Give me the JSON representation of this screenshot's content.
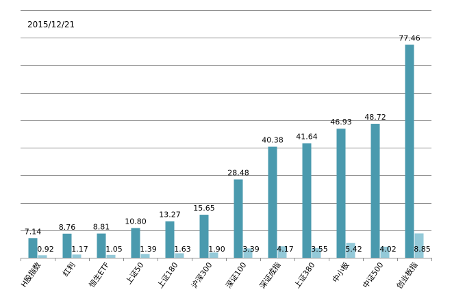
{
  "chart_data": {
    "type": "bar",
    "title": "2015/12/21",
    "xlabel": "",
    "ylabel": "",
    "ylim": [
      0,
      90
    ],
    "grid": true,
    "legend": "none",
    "categories": [
      "H股指数",
      "红利",
      "恒生ETF",
      "上证50",
      "上证180",
      "沪深300",
      "深证100",
      "深证成指",
      "上证380",
      "中小板",
      "中证500",
      "创业板指"
    ],
    "series": [
      {
        "name": "series-1",
        "values": [
          7.14,
          8.76,
          8.81,
          10.8,
          13.27,
          15.65,
          28.48,
          40.38,
          41.64,
          46.93,
          48.72,
          77.46
        ],
        "labels": [
          "7.14",
          "8.76",
          "8.81",
          "10.80",
          "13.27",
          "15.65",
          "28.48",
          "40.38",
          "41.64",
          "46.93",
          "48.72",
          "77.46"
        ]
      },
      {
        "name": "series-2",
        "values": [
          0.92,
          1.17,
          1.05,
          1.39,
          1.63,
          1.9,
          3.39,
          4.17,
          3.55,
          5.42,
          4.02,
          8.85
        ],
        "labels": [
          "0.92",
          "1.17",
          "1.05",
          "1.39",
          "1.63",
          "1.90",
          "3.39",
          "4.17",
          "3.55",
          "5.42",
          "4.02",
          "8.85"
        ]
      }
    ]
  },
  "colors": {
    "series1": "#4a9aae",
    "series2": "#93c9d8",
    "grid": "#8c8c8c"
  }
}
